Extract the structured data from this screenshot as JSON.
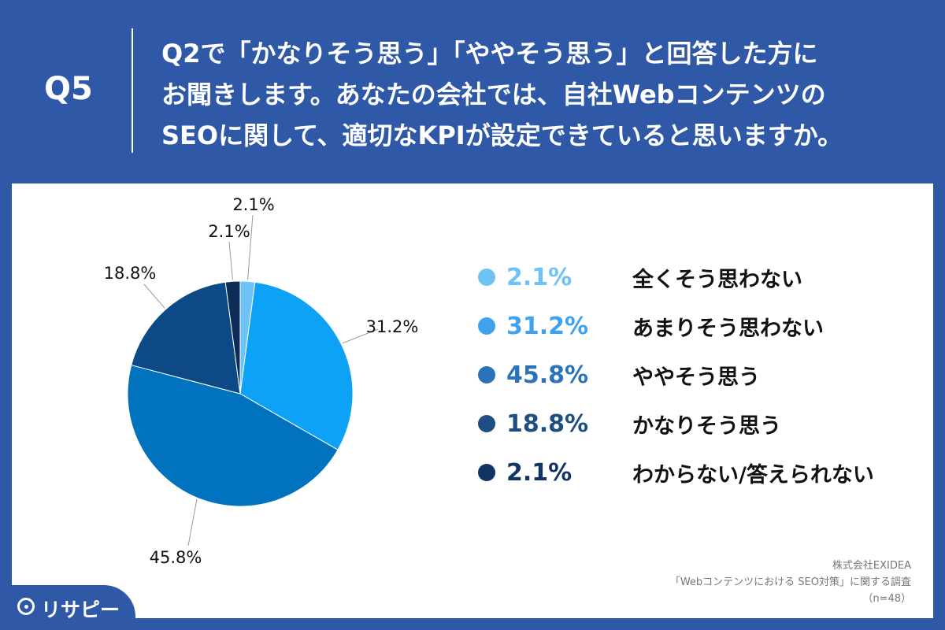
{
  "header": {
    "question_number": "Q5",
    "question_lines": [
      "Q2で「かなりそう思う」「ややそう思う」と回答した方に",
      "お聞きします。あなたの会社では、自社Webコンテンツの",
      "SEOに関して、適切なKPIが設定できていると思いますか。"
    ]
  },
  "chart_data": {
    "type": "pie",
    "start": "12 o'clock, clockwise",
    "slices": [
      {
        "label": "全くそう思わない",
        "value": 2.1,
        "display": "2.1%",
        "color": "#6ec3f5"
      },
      {
        "label": "あまりそう思わない",
        "value": 31.2,
        "display": "31.2%",
        "color": "#0ea2f6"
      },
      {
        "label": "ややそう思う",
        "value": 45.8,
        "display": "45.8%",
        "color": "#0072be"
      },
      {
        "label": "かなりそう思う",
        "value": 18.8,
        "display": "18.8%",
        "color": "#0d4985"
      },
      {
        "label": "わからない/答えられない",
        "value": 2.1,
        "display": "2.1%",
        "color": "#0d2d58"
      }
    ],
    "legend_colors": [
      "#6ec3f5",
      "#3fa2ee",
      "#2a73b8",
      "#1e4d82",
      "#123463"
    ],
    "legend_placement": "right"
  },
  "source": {
    "company": "株式会社EXIDEA",
    "survey": "「Webコンテンツにおける SEO対策」に関する調査",
    "n": "（n=48）"
  },
  "logo": {
    "text": "リサピー"
  }
}
